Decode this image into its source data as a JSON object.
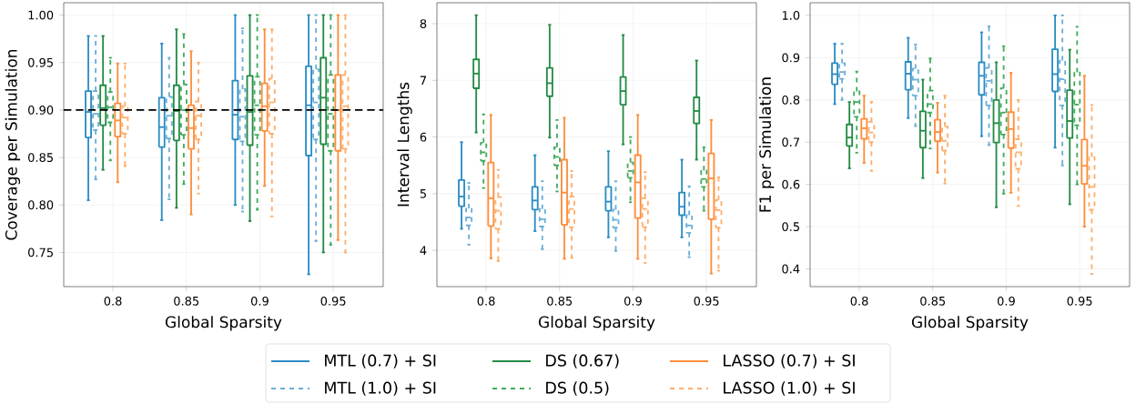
{
  "chart_data": [
    {
      "type": "box",
      "xlabel": "Global Sparsity",
      "ylabel": "Coverage per Simulation",
      "categories": [
        "0.8",
        "0.85",
        "0.9",
        "0.95"
      ],
      "ylim": [
        0.714,
        1.013
      ],
      "yticks": [
        0.75,
        {
          "value": 0.8,
          "label": "0.80"
        },
        0.85,
        {
          "value": 0.9,
          "label": "0.90"
        },
        0.95,
        {
          "value": 1.0,
          "label": "1.00"
        }
      ],
      "grid": true,
      "ref_lines": [
        {
          "axis": "y",
          "value": 0.9,
          "color": "#000000",
          "line_style": "dashed"
        }
      ],
      "series": [
        {
          "color": "#2b8cc4",
          "line_style": "solid",
          "boxes": [
            {
              "low": 0.805,
              "q1": 0.871,
              "median": 0.898,
              "q3": 0.92,
              "high": 0.978
            },
            {
              "low": 0.784,
              "q1": 0.861,
              "median": 0.882,
              "q3": 0.913,
              "high": 0.97
            },
            {
              "low": 0.8,
              "q1": 0.869,
              "median": 0.895,
              "q3": 0.931,
              "high": 1.0
            },
            {
              "low": 0.727,
              "q1": 0.852,
              "median": 0.905,
              "q3": 0.946,
              "high": 1.0
            }
          ]
        },
        {
          "color": "#6baed6",
          "line_style": "dashed",
          "boxes": [
            {
              "low": 0.827,
              "q1": 0.879,
              "median": 0.896,
              "q3": 0.92,
              "high": 0.978
            },
            {
              "low": 0.806,
              "q1": 0.87,
              "median": 0.894,
              "q3": 0.914,
              "high": 0.955
            },
            {
              "low": 0.793,
              "q1": 0.867,
              "median": 0.893,
              "q3": 0.922,
              "high": 0.986
            },
            {
              "low": 0.762,
              "q1": 0.869,
              "median": 0.908,
              "q3": 0.943,
              "high": 1.0
            }
          ]
        },
        {
          "color": "#238b45",
          "line_style": "solid",
          "boxes": [
            {
              "low": 0.837,
              "q1": 0.884,
              "median": 0.902,
              "q3": 0.926,
              "high": 0.978
            },
            {
              "low": 0.797,
              "q1": 0.868,
              "median": 0.899,
              "q3": 0.926,
              "high": 0.985
            },
            {
              "low": 0.783,
              "q1": 0.863,
              "median": 0.898,
              "q3": 0.936,
              "high": 1.0
            },
            {
              "low": 0.75,
              "q1": 0.864,
              "median": 0.913,
              "q3": 0.955,
              "high": 1.0
            }
          ]
        },
        {
          "color": "#41ab5d",
          "line_style": "dashed",
          "boxes": [
            {
              "low": 0.847,
              "q1": 0.887,
              "median": 0.903,
              "q3": 0.919,
              "high": 0.955
            },
            {
              "low": 0.822,
              "q1": 0.874,
              "median": 0.9,
              "q3": 0.927,
              "high": 0.98
            },
            {
              "low": 0.795,
              "q1": 0.874,
              "median": 0.905,
              "q3": 0.935,
              "high": 1.0
            },
            {
              "low": 0.758,
              "q1": 0.857,
              "median": 0.896,
              "q3": 0.937,
              "high": 1.0
            }
          ]
        },
        {
          "color": "#fd8d3c",
          "line_style": "solid",
          "boxes": [
            {
              "low": 0.824,
              "q1": 0.872,
              "median": 0.889,
              "q3": 0.907,
              "high": 0.949
            },
            {
              "low": 0.79,
              "q1": 0.859,
              "median": 0.881,
              "q3": 0.905,
              "high": 0.962
            },
            {
              "low": 0.82,
              "q1": 0.878,
              "median": 0.904,
              "q3": 0.928,
              "high": 0.985
            },
            {
              "low": 0.763,
              "q1": 0.857,
              "median": 0.9,
              "q3": 0.937,
              "high": 1.0
            }
          ]
        },
        {
          "color": "#fdae6b",
          "line_style": "dashed",
          "boxes": [
            {
              "low": 0.841,
              "q1": 0.875,
              "median": 0.892,
              "q3": 0.904,
              "high": 0.949
            },
            {
              "low": 0.812,
              "q1": 0.869,
              "median": 0.894,
              "q3": 0.909,
              "high": 0.95
            },
            {
              "low": 0.788,
              "q1": 0.875,
              "median": 0.908,
              "q3": 0.933,
              "high": 0.985
            },
            {
              "low": 0.75,
              "q1": 0.859,
              "median": 0.904,
              "q3": 0.937,
              "high": 1.0
            }
          ]
        }
      ]
    },
    {
      "type": "box",
      "xlabel": "Global Sparsity",
      "ylabel": "Interval Lengths",
      "categories": [
        "0.8",
        "0.85",
        "0.9",
        "0.95"
      ],
      "ylim": [
        3.36,
        8.37
      ],
      "yticks": [
        4,
        5,
        6,
        7,
        8
      ],
      "grid": true,
      "legend": "bottom",
      "series": [
        {
          "name": "MTL (0.7) + SI",
          "color": "#2b8cc4",
          "line_style": "solid",
          "boxes": [
            {
              "low": 4.38,
              "q1": 4.78,
              "median": 4.95,
              "q3": 5.24,
              "high": 5.91
            },
            {
              "low": 4.34,
              "q1": 4.72,
              "median": 4.88,
              "q3": 5.12,
              "high": 5.68
            },
            {
              "low": 4.23,
              "q1": 4.7,
              "median": 4.86,
              "q3": 5.12,
              "high": 5.75
            },
            {
              "low": 4.23,
              "q1": 4.62,
              "median": 4.77,
              "q3": 5.02,
              "high": 5.6
            }
          ]
        },
        {
          "name": "MTL (1.0) + SI",
          "color": "#6baed6",
          "line_style": "dashed",
          "boxes": [
            {
              "low": 4.1,
              "q1": 4.44,
              "median": 4.58,
              "q3": 4.74,
              "high": 5.19
            },
            {
              "low": 4.02,
              "q1": 4.42,
              "median": 4.55,
              "q3": 4.73,
              "high": 5.22
            },
            {
              "low": 3.99,
              "q1": 4.4,
              "median": 4.54,
              "q3": 4.72,
              "high": 5.22
            },
            {
              "low": 3.88,
              "q1": 4.31,
              "median": 4.44,
              "q3": 4.62,
              "high": 5.13
            }
          ]
        },
        {
          "name": "DS (0.67)",
          "color": "#238b45",
          "line_style": "solid",
          "boxes": [
            {
              "low": 6.08,
              "q1": 6.86,
              "median": 7.12,
              "q3": 7.37,
              "high": 8.15
            },
            {
              "low": 5.99,
              "q1": 6.72,
              "median": 6.95,
              "q3": 7.22,
              "high": 7.98
            },
            {
              "low": 5.87,
              "q1": 6.57,
              "median": 6.81,
              "q3": 7.06,
              "high": 7.8
            },
            {
              "low": 5.6,
              "q1": 6.24,
              "median": 6.46,
              "q3": 6.7,
              "high": 7.35
            }
          ]
        },
        {
          "name": "DS (0.5)",
          "color": "#41ab5d",
          "line_style": "dashed",
          "boxes": [
            {
              "low": 5.1,
              "q1": 5.58,
              "median": 5.73,
              "q3": 5.9,
              "high": 6.4
            },
            {
              "low": 5.04,
              "q1": 5.5,
              "median": 5.65,
              "q3": 5.82,
              "high": 6.3
            },
            {
              "low": 4.85,
              "q1": 5.28,
              "median": 5.4,
              "q3": 5.55,
              "high": 6.0
            },
            {
              "low": 4.7,
              "q1": 5.12,
              "median": 5.26,
              "q3": 5.41,
              "high": 5.82
            }
          ]
        },
        {
          "name": "LASSO (0.7) + SI",
          "color": "#fd8d3c",
          "line_style": "solid",
          "boxes": [
            {
              "low": 3.86,
              "q1": 4.43,
              "median": 4.92,
              "q3": 5.55,
              "high": 6.39
            },
            {
              "low": 3.85,
              "q1": 4.45,
              "median": 5.02,
              "q3": 5.6,
              "high": 6.34
            },
            {
              "low": 3.85,
              "q1": 4.57,
              "median": 5.2,
              "q3": 5.68,
              "high": 6.39
            },
            {
              "low": 3.59,
              "q1": 4.55,
              "median": 5.27,
              "q3": 5.71,
              "high": 6.3
            }
          ]
        },
        {
          "name": "LASSO (1.0) + SI",
          "color": "#fdae6b",
          "line_style": "dashed",
          "boxes": [
            {
              "low": 3.81,
              "q1": 4.38,
              "median": 4.7,
              "q3": 4.94,
              "high": 5.42
            },
            {
              "low": 3.87,
              "q1": 4.41,
              "median": 4.73,
              "q3": 4.95,
              "high": 5.4
            },
            {
              "low": 3.78,
              "q1": 4.41,
              "median": 4.73,
              "q3": 4.92,
              "high": 5.38
            },
            {
              "low": 3.64,
              "q1": 4.4,
              "median": 4.71,
              "q3": 4.89,
              "high": 5.29
            }
          ]
        }
      ]
    },
    {
      "type": "box",
      "xlabel": "Global Sparsity",
      "ylabel": "F1 per Simulation",
      "categories": [
        "0.8",
        "0.85",
        "0.9",
        "0.95"
      ],
      "ylim": [
        0.358,
        1.03
      ],
      "yticks": [
        0.4,
        0.5,
        0.6,
        0.7,
        0.8,
        0.9,
        {
          "value": 1.0,
          "label": "1.0"
        }
      ],
      "grid": true,
      "series": [
        {
          "color": "#2b8cc4",
          "line_style": "solid",
          "boxes": [
            {
              "low": 0.79,
              "q1": 0.837,
              "median": 0.861,
              "q3": 0.887,
              "high": 0.933
            },
            {
              "low": 0.757,
              "q1": 0.824,
              "median": 0.862,
              "q3": 0.89,
              "high": 0.947
            },
            {
              "low": 0.714,
              "q1": 0.812,
              "median": 0.857,
              "q3": 0.889,
              "high": 0.96
            },
            {
              "low": 0.687,
              "q1": 0.82,
              "median": 0.861,
              "q3": 0.92,
              "high": 1.0
            }
          ]
        },
        {
          "color": "#6baed6",
          "line_style": "dashed",
          "boxes": [
            {
              "low": 0.8,
              "q1": 0.85,
              "median": 0.866,
              "q3": 0.887,
              "high": 0.933
            },
            {
              "low": 0.738,
              "q1": 0.81,
              "median": 0.848,
              "q3": 0.874,
              "high": 0.931
            },
            {
              "low": 0.693,
              "q1": 0.787,
              "median": 0.845,
              "q3": 0.876,
              "high": 0.974
            },
            {
              "low": 0.645,
              "q1": 0.787,
              "median": 0.849,
              "q3": 0.893,
              "high": 1.0
            }
          ]
        },
        {
          "color": "#238b45",
          "line_style": "solid",
          "boxes": [
            {
              "low": 0.638,
              "q1": 0.691,
              "median": 0.711,
              "q3": 0.742,
              "high": 0.795
            },
            {
              "low": 0.615,
              "q1": 0.687,
              "median": 0.727,
              "q3": 0.773,
              "high": 0.848
            },
            {
              "low": 0.546,
              "q1": 0.699,
              "median": 0.745,
              "q3": 0.8,
              "high": 0.889
            },
            {
              "low": 0.553,
              "q1": 0.71,
              "median": 0.75,
              "q3": 0.823,
              "high": 0.919
            }
          ]
        },
        {
          "color": "#41ab5d",
          "line_style": "dashed",
          "boxes": [
            {
              "low": 0.675,
              "q1": 0.76,
              "median": 0.795,
              "q3": 0.82,
              "high": 0.867
            },
            {
              "low": 0.685,
              "q1": 0.77,
              "median": 0.79,
              "q3": 0.822,
              "high": 0.898
            },
            {
              "low": 0.578,
              "q1": 0.718,
              "median": 0.77,
              "q3": 0.828,
              "high": 0.927
            },
            {
              "low": 0.6,
              "q1": 0.74,
              "median": 0.789,
              "q3": 0.865,
              "high": 0.973
            }
          ]
        },
        {
          "color": "#fd8d3c",
          "line_style": "solid",
          "boxes": [
            {
              "low": 0.651,
              "q1": 0.708,
              "median": 0.733,
              "q3": 0.755,
              "high": 0.81
            },
            {
              "low": 0.628,
              "q1": 0.702,
              "median": 0.724,
              "q3": 0.753,
              "high": 0.793
            },
            {
              "low": 0.58,
              "q1": 0.686,
              "median": 0.731,
              "q3": 0.771,
              "high": 0.864
            },
            {
              "low": 0.5,
              "q1": 0.601,
              "median": 0.644,
              "q3": 0.706,
              "high": 0.857
            }
          ]
        },
        {
          "color": "#fdae6b",
          "line_style": "dashed",
          "boxes": [
            {
              "low": 0.632,
              "q1": 0.7,
              "median": 0.723,
              "q3": 0.748,
              "high": 0.795
            },
            {
              "low": 0.602,
              "q1": 0.68,
              "median": 0.703,
              "q3": 0.737,
              "high": 0.81
            },
            {
              "low": 0.549,
              "q1": 0.637,
              "median": 0.676,
              "q3": 0.707,
              "high": 0.8
            },
            {
              "low": 0.388,
              "q1": 0.54,
              "median": 0.594,
              "q3": 0.665,
              "high": 0.788
            }
          ]
        }
      ]
    }
  ]
}
